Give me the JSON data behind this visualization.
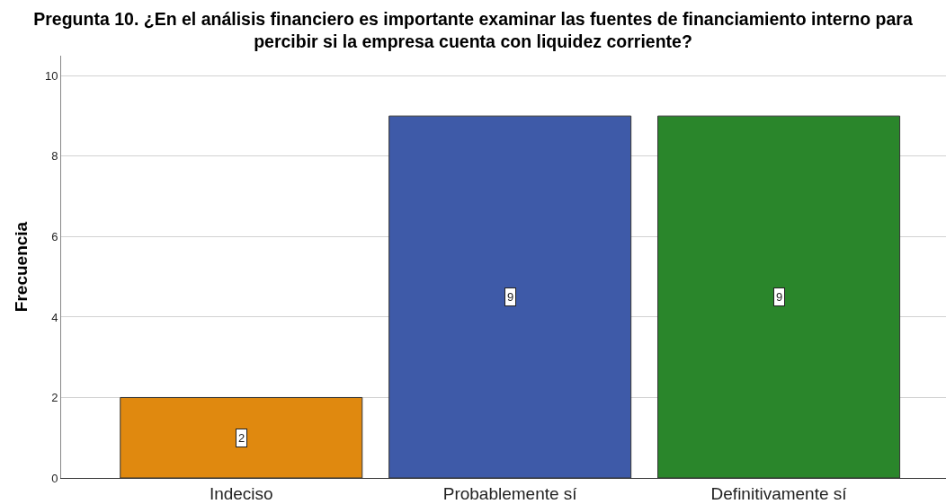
{
  "chart_data": {
    "type": "bar",
    "title": "Pregunta 10. ¿En el análisis financiero es importante examinar las fuentes de financiamiento interno para\npercibir si la empresa cuenta con liquidez corriente?",
    "ylabel": "Frecuencia",
    "categories": [
      "Indeciso",
      "Probablemente sí",
      "Definitivamente sí"
    ],
    "values": [
      2,
      9,
      9
    ],
    "colors": [
      "#e0890f",
      "#3e5aa8",
      "#2a862b"
    ],
    "ylim": [
      0,
      10.5
    ],
    "yticks": [
      0,
      2,
      4,
      6,
      8,
      10
    ],
    "grid": "y",
    "data_labels": true
  }
}
